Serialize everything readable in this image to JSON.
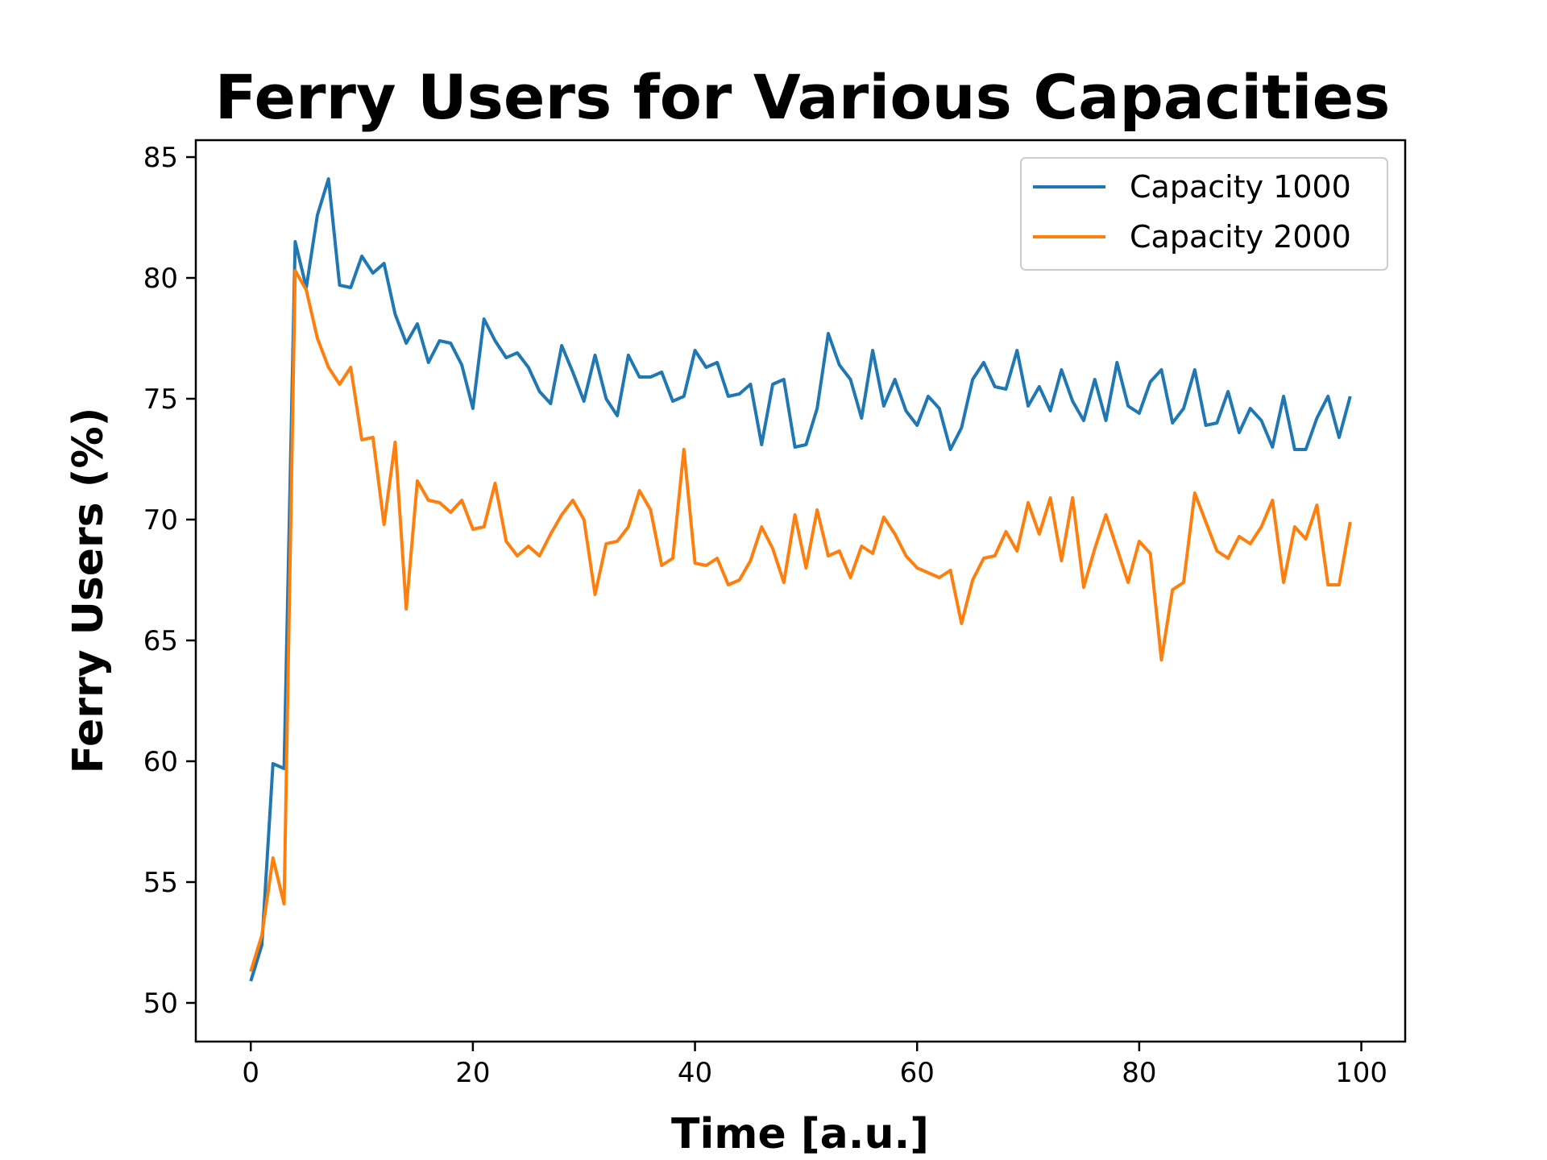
{
  "chart_data": {
    "type": "line",
    "title": "Ferry Users for Various Capacities",
    "xlabel": "Time [a.u.]",
    "ylabel": "Ferry Users (%)",
    "xlim": [
      -4.95,
      103.95
    ],
    "ylim": [
      48.4,
      85.7
    ],
    "xticks": [
      0,
      20,
      40,
      60,
      80,
      100
    ],
    "yticks": [
      50,
      55,
      60,
      65,
      70,
      75,
      80,
      85
    ],
    "grid": false,
    "legend_position": "top-right",
    "x": [
      0,
      1,
      2,
      3,
      4,
      5,
      6,
      7,
      8,
      9,
      10,
      11,
      12,
      13,
      14,
      15,
      16,
      17,
      18,
      19,
      20,
      21,
      22,
      23,
      24,
      25,
      26,
      27,
      28,
      29,
      30,
      31,
      32,
      33,
      34,
      35,
      36,
      37,
      38,
      39,
      40,
      41,
      42,
      43,
      44,
      45,
      46,
      47,
      48,
      49,
      50,
      51,
      52,
      53,
      54,
      55,
      56,
      57,
      58,
      59,
      60,
      61,
      62,
      63,
      64,
      65,
      66,
      67,
      68,
      69,
      70,
      71,
      72,
      73,
      74,
      75,
      76,
      77,
      78,
      79,
      80,
      81,
      82,
      83,
      84,
      85,
      86,
      87,
      88,
      89,
      90,
      91,
      92,
      93,
      94,
      95,
      96,
      97,
      98,
      99
    ],
    "series": [
      {
        "name": "Capacity 1000",
        "color": "#1f77b4",
        "values": [
          50.9,
          52.4,
          59.9,
          59.7,
          81.5,
          79.6,
          82.6,
          84.1,
          79.7,
          79.6,
          80.9,
          80.2,
          80.6,
          78.5,
          77.3,
          78.1,
          76.5,
          77.4,
          77.3,
          76.4,
          74.6,
          78.3,
          77.4,
          76.7,
          76.9,
          76.3,
          75.3,
          74.8,
          77.2,
          76.1,
          74.9,
          76.8,
          75.0,
          74.3,
          76.8,
          75.9,
          75.9,
          76.1,
          74.9,
          75.1,
          77.0,
          76.3,
          76.5,
          75.1,
          75.2,
          75.6,
          73.1,
          75.6,
          75.8,
          73.0,
          73.1,
          74.6,
          77.7,
          76.4,
          75.8,
          74.2,
          77.0,
          74.7,
          75.8,
          74.5,
          73.9,
          75.1,
          74.6,
          72.9,
          73.8,
          75.8,
          76.5,
          75.5,
          75.4,
          77.0,
          74.7,
          75.5,
          74.5,
          76.2,
          74.9,
          74.1,
          75.8,
          74.1,
          76.5,
          74.7,
          74.4,
          75.7,
          76.2,
          74.0,
          74.6,
          76.2,
          73.9,
          74.0,
          75.3,
          73.6,
          74.6,
          74.1,
          73.0,
          75.1,
          72.9,
          72.9,
          74.2,
          75.1,
          73.4,
          75.1
        ]
      },
      {
        "name": "Capacity 2000",
        "color": "#ff7f0e",
        "values": [
          51.3,
          52.8,
          56.0,
          54.1,
          80.3,
          79.5,
          77.5,
          76.3,
          75.6,
          76.3,
          73.3,
          73.4,
          69.8,
          73.2,
          66.3,
          71.6,
          70.8,
          70.7,
          70.3,
          70.8,
          69.6,
          69.7,
          71.5,
          69.1,
          68.5,
          68.9,
          68.5,
          69.4,
          70.2,
          70.8,
          70.0,
          66.9,
          69.0,
          69.1,
          69.7,
          71.2,
          70.4,
          68.1,
          68.4,
          72.9,
          68.2,
          68.1,
          68.4,
          67.3,
          67.5,
          68.3,
          69.7,
          68.8,
          67.4,
          70.2,
          68.0,
          70.4,
          68.5,
          68.7,
          67.6,
          68.9,
          68.6,
          70.1,
          69.4,
          68.5,
          68.0,
          67.8,
          67.6,
          67.9,
          65.7,
          67.5,
          68.4,
          68.5,
          69.5,
          68.7,
          70.7,
          69.4,
          70.9,
          68.3,
          70.9,
          67.2,
          68.8,
          70.2,
          68.8,
          67.4,
          69.1,
          68.6,
          64.2,
          67.1,
          67.4,
          71.1,
          69.9,
          68.7,
          68.4,
          69.3,
          69.0,
          69.7,
          70.8,
          67.4,
          69.7,
          69.2,
          70.6,
          67.3,
          67.3,
          69.9
        ]
      }
    ]
  }
}
